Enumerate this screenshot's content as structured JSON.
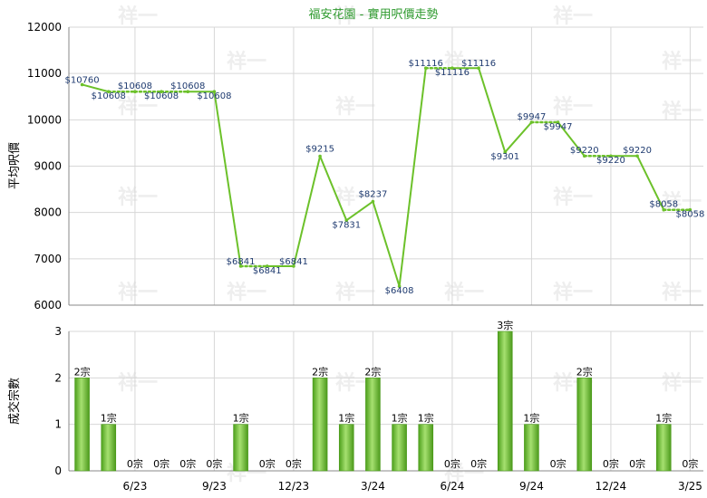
{
  "chart_data": [
    {
      "type": "line",
      "title": "福安花園 - 實用呎價走勢",
      "ylabel": "平均呎價",
      "ylim": [
        6000,
        12000
      ],
      "yticks": [
        "12000",
        "11000",
        "10000",
        "9000",
        "8000",
        "7000",
        "6000"
      ],
      "x_tick_labels": [
        "6/23",
        "9/23",
        "12/23",
        "3/24",
        "6/24",
        "9/24",
        "12/24",
        "3/25"
      ],
      "series": [
        {
          "values": [
            10760,
            10608,
            10608,
            10608,
            10608,
            10608,
            6841,
            6841,
            6841,
            9215,
            7831,
            8237,
            6408,
            11116,
            11116,
            11116,
            9301,
            9947,
            9947,
            9220,
            9220,
            9220,
            8058,
            8058
          ],
          "carried": [
            false,
            false,
            true,
            true,
            true,
            false,
            false,
            true,
            false,
            false,
            false,
            false,
            false,
            false,
            true,
            false,
            false,
            false,
            true,
            false,
            true,
            false,
            false,
            true
          ],
          "labels": [
            "$10760",
            "$10608",
            "$10608",
            "$10608",
            "$10608",
            "$10608",
            "$6841",
            "$6841",
            "$6841",
            "$9215",
            "$7831",
            "$8237",
            "$6408",
            "$11116",
            "$11116",
            "$11116",
            "$9301",
            "$9947",
            "$9947",
            "$9220",
            "$9220",
            "$9220",
            "$8058",
            "$8058"
          ]
        }
      ],
      "color": "#6cc12a",
      "grid": true
    },
    {
      "type": "bar",
      "ylabel": "成交宗數",
      "ylim": [
        0,
        3
      ],
      "yticks": [
        "3",
        "2",
        "1",
        "0"
      ],
      "values": [
        2,
        1,
        0,
        0,
        0,
        0,
        1,
        0,
        0,
        2,
        1,
        2,
        1,
        1,
        0,
        0,
        3,
        1,
        0,
        2,
        0,
        0,
        1,
        0
      ],
      "labels": [
        "2宗",
        "1宗",
        "0宗",
        "0宗",
        "0宗",
        "0宗",
        "1宗",
        "0宗",
        "0宗",
        "2宗",
        "1宗",
        "2宗",
        "1宗",
        "1宗",
        "0宗",
        "0宗",
        "3宗",
        "1宗",
        "0宗",
        "2宗",
        "0宗",
        "0宗",
        "1宗",
        "0宗"
      ],
      "color": "#6cc12a",
      "grid": true
    }
  ],
  "watermark": "祥一"
}
